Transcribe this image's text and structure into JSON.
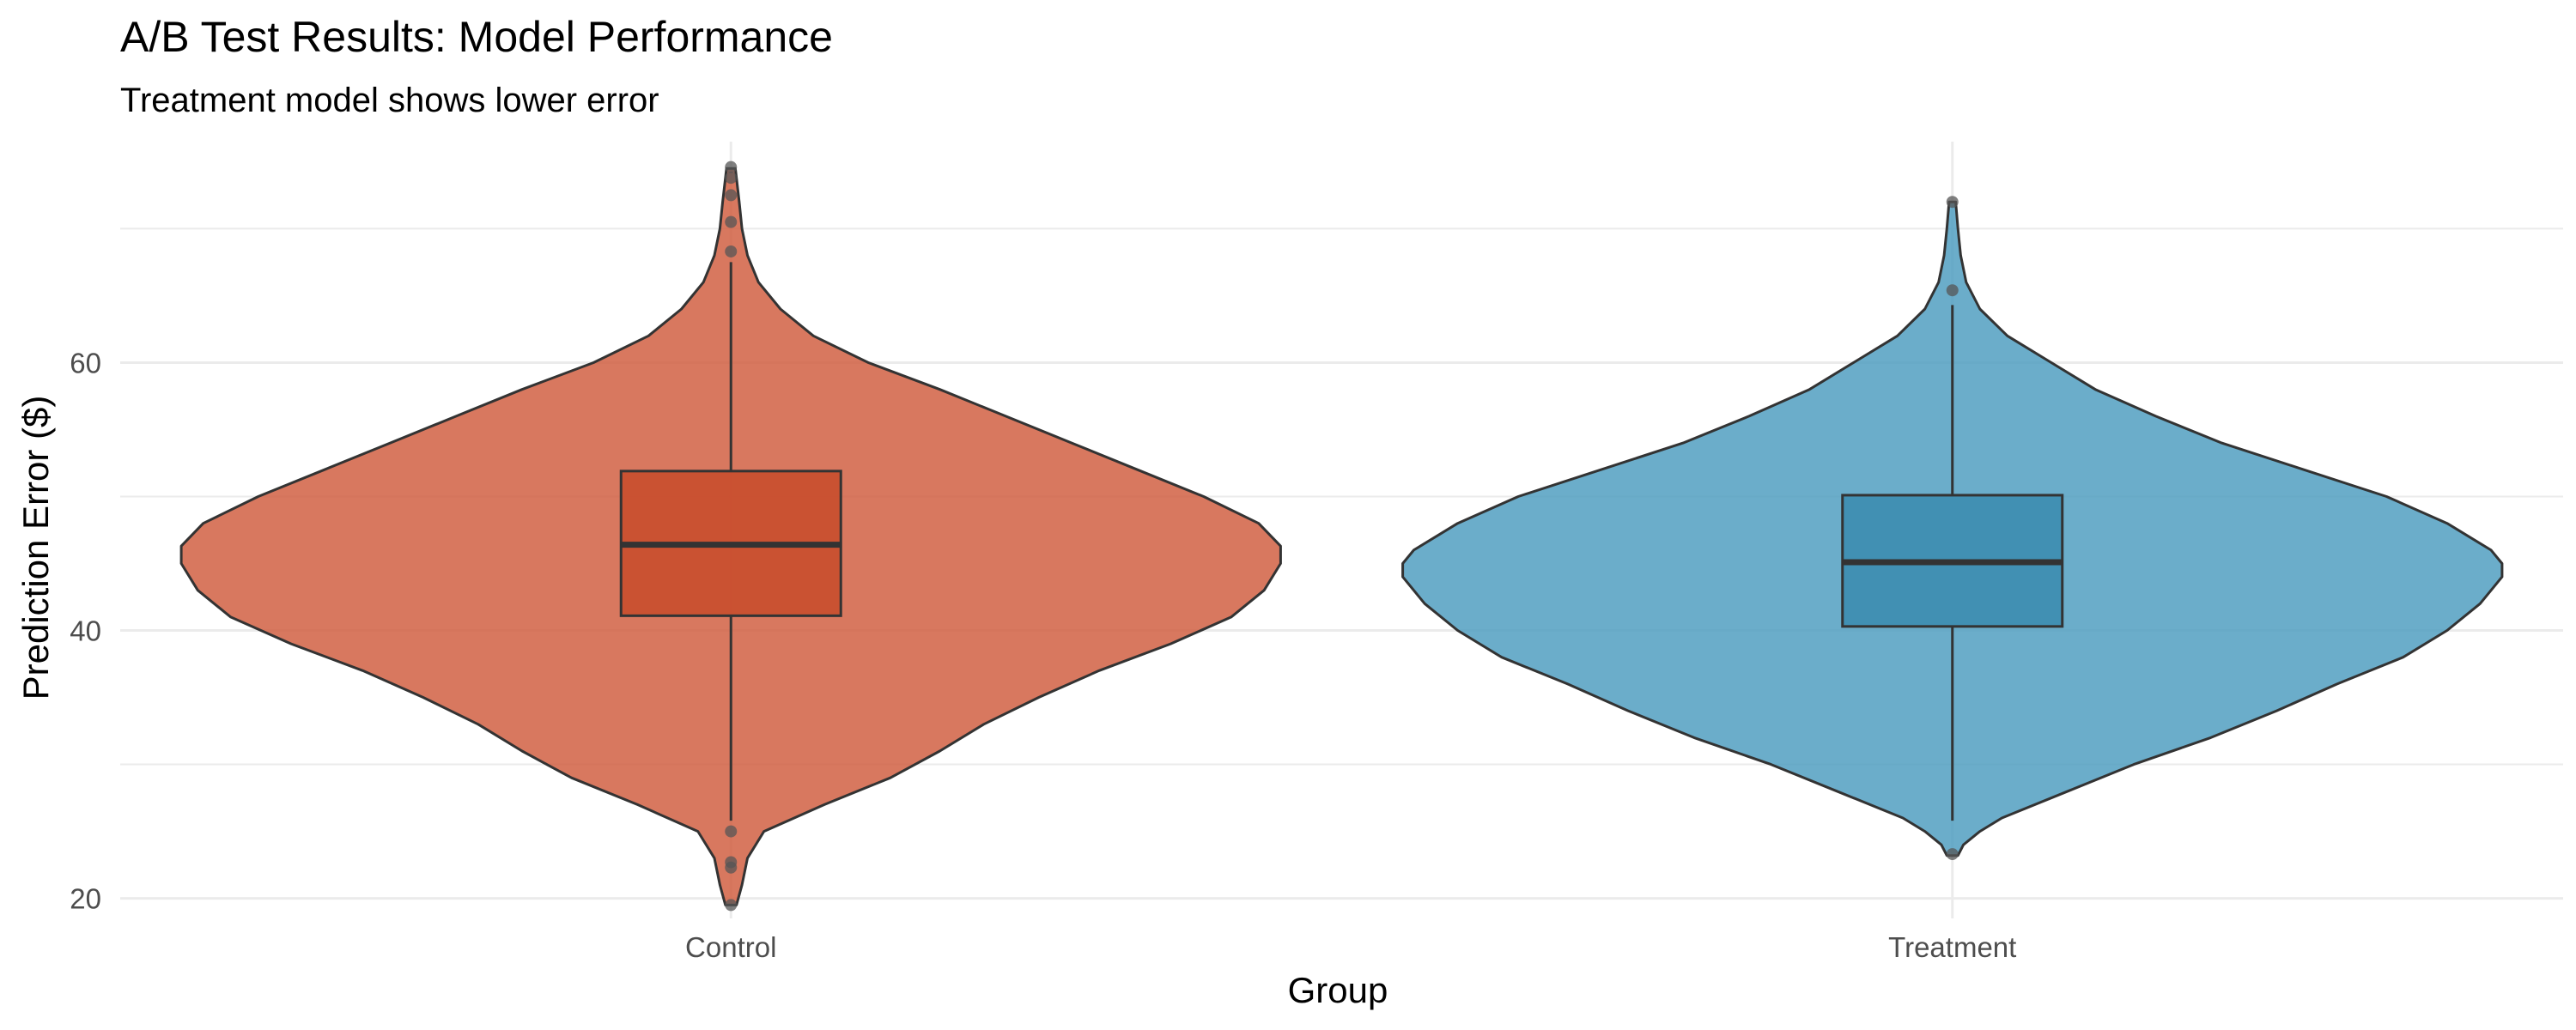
{
  "chart_data": {
    "type": "violin",
    "title": "A/B Test Results: Model Performance",
    "subtitle": "Treatment model shows lower error",
    "xlabel": "Group",
    "ylabel": "Prediction Error ($)",
    "ylim": [
      18.5,
      76.5
    ],
    "yticks": [
      20,
      40,
      60
    ],
    "ytick_labels": [
      "20",
      "40",
      "60"
    ],
    "grid": true,
    "legend": "none",
    "categories": [
      "Control",
      "Treatment"
    ],
    "groups": [
      {
        "name": "Control",
        "fill": "#D05A3C",
        "box_fill": "#C94E2E",
        "box": {
          "lower_whisker": 25.8,
          "q1": 41.1,
          "median": 46.4,
          "q3": 51.9,
          "upper_whisker": 67.5
        },
        "outliers": [
          19.5,
          22.3,
          22.7,
          25.0,
          68.3,
          70.5,
          72.5,
          73.8,
          74.6
        ],
        "density": [
          [
            19.5,
            0.01
          ],
          [
            21,
            0.02
          ],
          [
            23,
            0.03
          ],
          [
            25,
            0.06
          ],
          [
            27,
            0.17
          ],
          [
            29,
            0.29
          ],
          [
            31,
            0.38
          ],
          [
            33,
            0.46
          ],
          [
            35,
            0.56
          ],
          [
            37,
            0.67
          ],
          [
            39,
            0.8
          ],
          [
            41,
            0.91
          ],
          [
            43,
            0.97
          ],
          [
            45,
            1.0
          ],
          [
            46.3,
            1.0
          ],
          [
            48,
            0.96
          ],
          [
            50,
            0.86
          ],
          [
            52,
            0.74
          ],
          [
            54,
            0.62
          ],
          [
            56,
            0.5
          ],
          [
            58,
            0.38
          ],
          [
            60,
            0.25
          ],
          [
            62,
            0.15
          ],
          [
            64,
            0.09
          ],
          [
            66,
            0.05
          ],
          [
            68,
            0.03
          ],
          [
            70,
            0.02
          ],
          [
            72,
            0.015
          ],
          [
            74.5,
            0.008
          ]
        ]
      },
      {
        "name": "Treatment",
        "fill": "#4A9BBE",
        "box_fill": "#3D8DB0",
        "box": {
          "lower_whisker": 25.8,
          "q1": 40.3,
          "median": 45.1,
          "q3": 50.1,
          "upper_whisker": 64.3
        },
        "outliers": [
          23.3,
          65.4,
          72.0
        ],
        "density": [
          [
            23.2,
            0.01
          ],
          [
            24,
            0.02
          ],
          [
            25,
            0.05
          ],
          [
            26,
            0.09
          ],
          [
            28,
            0.21
          ],
          [
            30,
            0.33
          ],
          [
            32,
            0.47
          ],
          [
            34,
            0.59
          ],
          [
            36,
            0.7
          ],
          [
            38,
            0.82
          ],
          [
            40,
            0.9
          ],
          [
            42,
            0.96
          ],
          [
            44,
            1.0
          ],
          [
            45,
            1.0
          ],
          [
            46,
            0.98
          ],
          [
            48,
            0.9
          ],
          [
            50,
            0.79
          ],
          [
            52,
            0.64
          ],
          [
            54,
            0.49
          ],
          [
            56,
            0.37
          ],
          [
            58,
            0.26
          ],
          [
            60,
            0.18
          ],
          [
            62,
            0.1
          ],
          [
            64,
            0.05
          ],
          [
            66,
            0.025
          ],
          [
            68,
            0.015
          ],
          [
            70,
            0.01
          ],
          [
            72,
            0.006
          ]
        ]
      }
    ]
  }
}
